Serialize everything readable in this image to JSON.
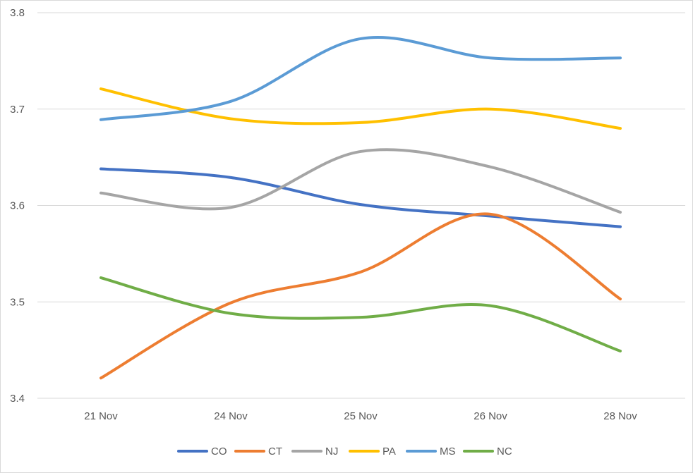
{
  "chart_data": {
    "type": "line",
    "title": "",
    "xlabel": "",
    "ylabel": "",
    "categories": [
      "21 Nov",
      "24 Nov",
      "25 Nov",
      "26 Nov",
      "28 Nov"
    ],
    "y_ticks": [
      "3.4",
      "3.5",
      "3.6",
      "3.7",
      "3.8"
    ],
    "ylim": [
      3.4,
      3.8
    ],
    "grid": true,
    "legend_position": "bottom",
    "smooth": true,
    "series": [
      {
        "name": "CO",
        "color": "#4472C4",
        "values": [
          3.638,
          3.629,
          3.601,
          3.589,
          3.578
        ]
      },
      {
        "name": "CT",
        "color": "#ED7D31",
        "values": [
          3.421,
          3.499,
          3.531,
          3.591,
          3.503
        ]
      },
      {
        "name": "NJ",
        "color": "#A5A5A5",
        "values": [
          3.613,
          3.598,
          3.656,
          3.64,
          3.593
        ]
      },
      {
        "name": "PA",
        "color": "#FFC000",
        "values": [
          3.721,
          3.69,
          3.686,
          3.7,
          3.68
        ]
      },
      {
        "name": "MS",
        "color": "#5B9BD5",
        "values": [
          3.689,
          3.708,
          3.773,
          3.753,
          3.753
        ]
      },
      {
        "name": "NC",
        "color": "#70AD47",
        "values": [
          3.525,
          3.488,
          3.484,
          3.496,
          3.449
        ]
      }
    ]
  }
}
